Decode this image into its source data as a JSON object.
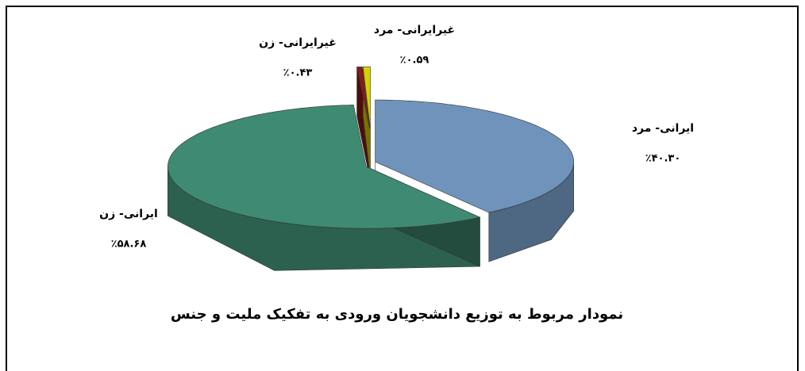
{
  "chart_data": {
    "type": "pie",
    "title": "نمودار مربوط به توزیع دانشجویان ورودی به تفکیک ملیت و جنس",
    "categories": [
      "ایرانی- مرد",
      "ایرانی- زن",
      "غیرایرانی- زن",
      "غیرایرانی- مرد"
    ],
    "values": [
      40.3,
      58.68,
      0.43,
      0.59
    ],
    "value_labels": [
      "٪۴۰.۳۰",
      "٪۵۸.۶۸",
      "٪۰.۴۳",
      "٪۰.۵۹"
    ],
    "colors": [
      "#6f93bb",
      "#3f8a72",
      "#8b1a1a",
      "#d8d000"
    ]
  }
}
